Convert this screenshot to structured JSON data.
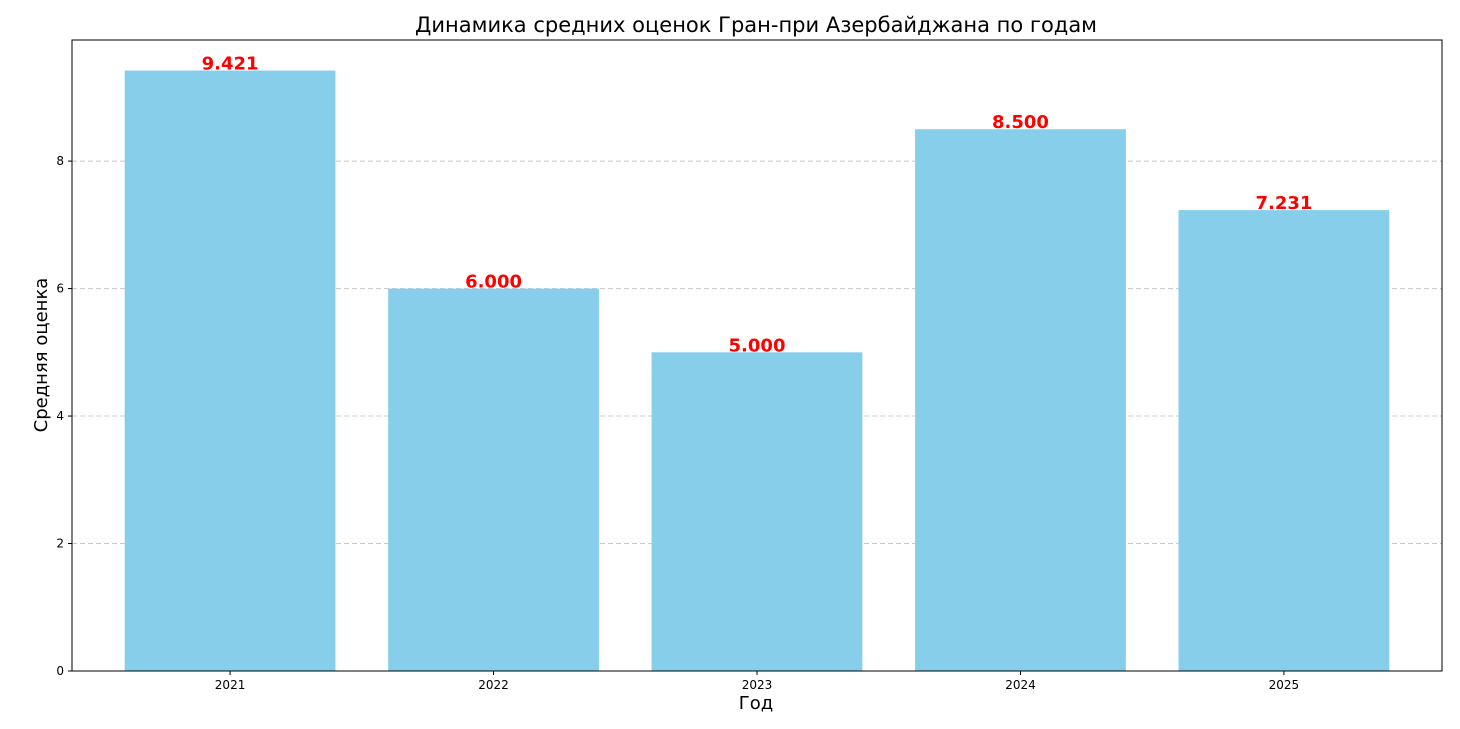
{
  "chart_data": {
    "type": "bar",
    "title": "Динамика средних оценок Гран-при Азербайджана по годам",
    "xlabel": "Год",
    "ylabel": "Средняя оценка",
    "categories": [
      "2021",
      "2022",
      "2023",
      "2024",
      "2025"
    ],
    "values": [
      9.421,
      6.0,
      5.0,
      8.5,
      7.231
    ],
    "data_labels": [
      "9.421",
      "6.000",
      "5.000",
      "8.500",
      "7.231"
    ],
    "ylim": [
      0,
      9.9
    ],
    "yticks": [
      0,
      2,
      4,
      6,
      8
    ],
    "grid": "y-dashed",
    "colors": {
      "bar": "#87CEEB",
      "label": "#ff0000"
    }
  }
}
